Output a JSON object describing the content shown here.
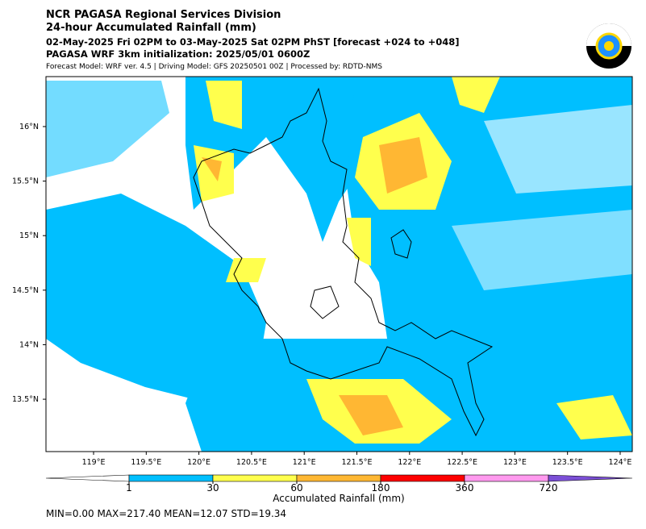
{
  "header": {
    "title": "NCR PAGASA Regional Services Division",
    "subtitle": "24-hour Accumulated Rainfall (mm)",
    "period": "02-May-2025 Fri 02PM to 03-May-2025 Sat 02PM PhST [forecast +024 to +048]",
    "init": "PAGASA WRF 3km initialization: 2025/05/01 0600Z",
    "model": "Forecast Model: WRF ver. 4.5 | Driving Model: GFS 20250501 00Z | Processed by: RDTD-NMS"
  },
  "map": {
    "xlim": [
      118.548,
      124.115
    ],
    "ylim": [
      13.02,
      16.458
    ],
    "xticks": [
      {
        "value": 119,
        "label": "119°E"
      },
      {
        "value": 119.5,
        "label": "119.5°E"
      },
      {
        "value": 120,
        "label": "120°E"
      },
      {
        "value": 120.5,
        "label": "120.5°E"
      },
      {
        "value": 121,
        "label": "121°E"
      },
      {
        "value": 121.5,
        "label": "121.5°E"
      },
      {
        "value": 122,
        "label": "122°E"
      },
      {
        "value": 122.5,
        "label": "122.5°E"
      },
      {
        "value": 123,
        "label": "123°E"
      },
      {
        "value": 123.5,
        "label": "123.5°E"
      },
      {
        "value": 124,
        "label": "124°E"
      }
    ],
    "yticks": [
      {
        "value": 16,
        "label": "16°N"
      },
      {
        "value": 15.5,
        "label": "15.5°N"
      },
      {
        "value": 15,
        "label": "15°N"
      },
      {
        "value": 14.5,
        "label": "14.5°N"
      },
      {
        "value": 14,
        "label": "14°N"
      },
      {
        "value": 13.5,
        "label": "13.5°N"
      }
    ]
  },
  "colorbar": {
    "label": "Accumulated Rainfall (mm)",
    "levels": [
      1,
      30,
      60,
      180,
      360,
      720
    ],
    "colors": [
      "#00bfff",
      "#ffff4d",
      "#ffb733",
      "#ff0000",
      "#ff99ee",
      "#7b4fd6"
    ]
  },
  "stats": "MIN=0.00   MAX=217.40   MEAN=12.07   STD=19.34"
}
